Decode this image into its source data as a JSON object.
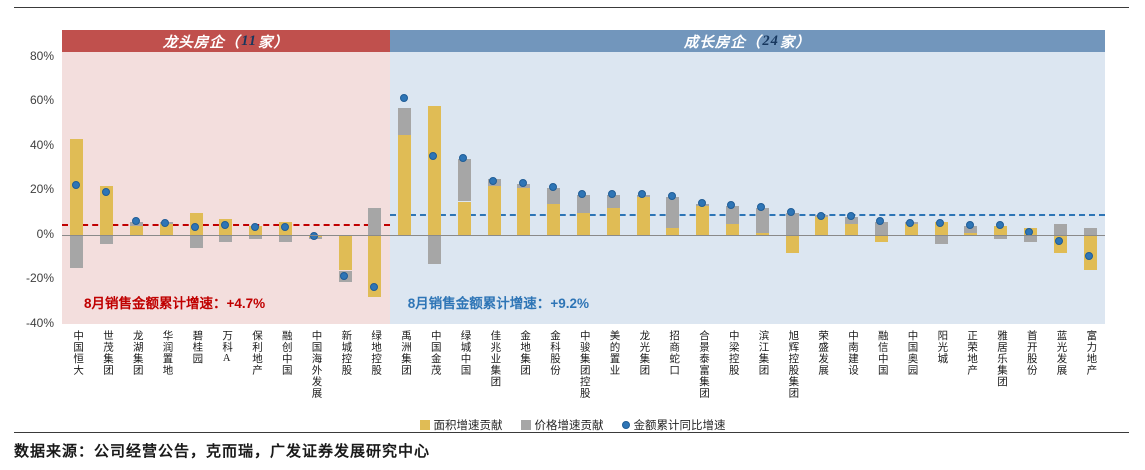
{
  "page": {
    "source_text": "数据来源：公司经营公告，克而瑞，广发证券发展研究中心"
  },
  "colors": {
    "bar_area": "#E0BC55",
    "bar_price": "#A6A6A6",
    "dot": "#2E75B6",
    "zero_line": "#8a8a8a",
    "red_accent": "#C00000",
    "blue_accent": "#2E75B6"
  },
  "chart_data": {
    "type": "bar",
    "stacked": true,
    "ylim": [
      -40,
      80
    ],
    "ytick_values": [
      80,
      60,
      40,
      20,
      0,
      -20,
      -40
    ],
    "ytick_labels": [
      "80%",
      "60%",
      "40%",
      "20%",
      "0%",
      "-20%",
      "-40%"
    ],
    "legend": [
      {
        "label": "面积增速贡献",
        "marker": "square",
        "color": "#E0BC55"
      },
      {
        "label": "价格增速贡献",
        "marker": "square",
        "color": "#A6A6A6"
      },
      {
        "label": "金额累计同比增速",
        "marker": "dot",
        "color": "#2E75B6"
      }
    ],
    "groups": [
      {
        "title_pre": "龙头房企（",
        "title_num": "11",
        "title_post": "家）",
        "band_color": "#C0504D",
        "bg_color": "#F3DEDD",
        "accent": "#C00000",
        "avg_line_value": 4.7,
        "annotation_label": "8月销售金额累计增速：",
        "annotation_value": "+4.7%",
        "companies": [
          {
            "name": "中国恒大",
            "area": 43,
            "price": -15,
            "dot": 22
          },
          {
            "name": "世茂集团",
            "area": 22,
            "price": -4,
            "dot": 19
          },
          {
            "name": "龙湖集团",
            "area": 4,
            "price": 2,
            "dot": 6
          },
          {
            "name": "华润置地",
            "area": 5,
            "price": 1,
            "dot": 5
          },
          {
            "name": "碧桂园",
            "area": 10,
            "price": -6,
            "dot": 3
          },
          {
            "name": "万科A",
            "area": 7,
            "price": -3,
            "dot": 4
          },
          {
            "name": "保利地产",
            "area": 4,
            "price": -2,
            "dot": 3
          },
          {
            "name": "融创中国",
            "area": 6,
            "price": -3,
            "dot": 3
          },
          {
            "name": "中国海外发展",
            "area": -1,
            "price": -1,
            "dot": -1
          },
          {
            "name": "新城控股",
            "area": -16,
            "price": -5,
            "dot": -19
          },
          {
            "name": "绿地控股",
            "area": -28,
            "price": 12,
            "dot": -24
          }
        ]
      },
      {
        "title_pre": "成长房企（",
        "title_num": "24",
        "title_post": "家）",
        "band_color": "#7296BC",
        "bg_color": "#DCE6F1",
        "accent": "#2E75B6",
        "avg_line_value": 9.2,
        "annotation_label": "8月销售金额累计增速：",
        "annotation_value": "+9.2%",
        "companies": [
          {
            "name": "禹洲集团",
            "area": 45,
            "price": 12,
            "dot": 61
          },
          {
            "name": "中国金茂",
            "area": 58,
            "price": -13,
            "dot": 35
          },
          {
            "name": "绿城中国",
            "area": 15,
            "price": 19,
            "dot": 34
          },
          {
            "name": "佳兆业集团",
            "area": 22,
            "price": 3,
            "dot": 24
          },
          {
            "name": "金地集团",
            "area": 21,
            "price": 2,
            "dot": 23
          },
          {
            "name": "金科股份",
            "area": 14,
            "price": 7,
            "dot": 21
          },
          {
            "name": "中骏集团控股",
            "area": 10,
            "price": 8,
            "dot": 18
          },
          {
            "name": "美的置业",
            "area": 12,
            "price": 6,
            "dot": 18
          },
          {
            "name": "龙光集团",
            "area": 17,
            "price": 1,
            "dot": 18
          },
          {
            "name": "招商蛇口",
            "area": 3,
            "price": 14,
            "dot": 17
          },
          {
            "name": "合景泰富集团",
            "area": 13,
            "price": 1,
            "dot": 14
          },
          {
            "name": "中梁控股",
            "area": 5,
            "price": 8,
            "dot": 13
          },
          {
            "name": "滨江集团",
            "area": 1,
            "price": 11,
            "dot": 12
          },
          {
            "name": "旭辉控股集团",
            "area": -8,
            "price": 10,
            "dot": 10
          },
          {
            "name": "荣盛发展",
            "area": 8,
            "price": 1,
            "dot": 8
          },
          {
            "name": "中南建设",
            "area": 5,
            "price": 3,
            "dot": 8
          },
          {
            "name": "融信中国",
            "area": -3,
            "price": 6,
            "dot": 6
          },
          {
            "name": "中国奥园",
            "area": 5,
            "price": 1,
            "dot": 5
          },
          {
            "name": "阳光城",
            "area": 6,
            "price": -4,
            "dot": 5
          },
          {
            "name": "正荣地产",
            "area": 1,
            "price": 3,
            "dot": 4
          },
          {
            "name": "雅居乐集团",
            "area": 4,
            "price": -2,
            "dot": 4
          },
          {
            "name": "首开股份",
            "area": 3,
            "price": -3,
            "dot": 1
          },
          {
            "name": "蓝光发展",
            "area": -8,
            "price": 5,
            "dot": -3
          },
          {
            "name": "富力地产",
            "area": -16,
            "price": 3,
            "dot": -10
          }
        ]
      }
    ]
  }
}
